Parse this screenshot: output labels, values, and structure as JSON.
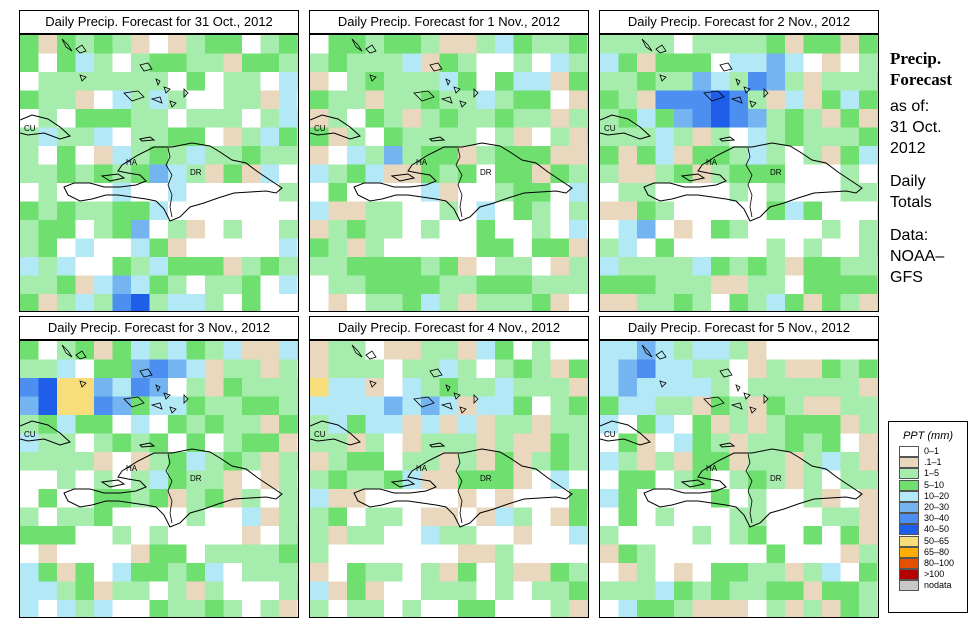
{
  "panels": [
    {
      "title": "Daily Precip. Forecast for  31 Oct., 2012"
    },
    {
      "title": "Daily Precip. Forecast for  1 Nov., 2012"
    },
    {
      "title": "Daily Precip. Forecast for  2 Nov., 2012"
    },
    {
      "title": "Daily Precip. Forecast for  3 Nov., 2012"
    },
    {
      "title": "Daily Precip. Forecast for  4 Nov., 2012"
    },
    {
      "title": "Daily Precip. Forecast for  5 Nov., 2012"
    }
  ],
  "map_labels": {
    "cuba": "CU",
    "haiti": "HA",
    "dominican_republic": "DR"
  },
  "side": {
    "heading1": "Precip.",
    "heading2": "Forecast",
    "as_of": "as of:",
    "date1": "31 Oct.",
    "date2": "2012",
    "totals1": "Daily",
    "totals2": "Totals",
    "data1": "Data:",
    "data2": "NOAA–",
    "data3": "GFS"
  },
  "legend": {
    "title": "PPT (mm)",
    "items": [
      {
        "label": "0–1",
        "color": "#ffffff"
      },
      {
        "label": ".1–1",
        "color": "#e9d8bd"
      },
      {
        "label": "1–5",
        "color": "#a6ecac"
      },
      {
        "label": "5–10",
        "color": "#6fe06f"
      },
      {
        "label": "10–20",
        "color": "#b3e8f7"
      },
      {
        "label": "20–30",
        "color": "#74b4f0"
      },
      {
        "label": "30–40",
        "color": "#4c8ff0"
      },
      {
        "label": "40–50",
        "color": "#1f5ee8"
      },
      {
        "label": "50–65",
        "color": "#f7de7a"
      },
      {
        "label": "65–80",
        "color": "#ffae00"
      },
      {
        "label": "80–100",
        "color": "#e25000"
      },
      {
        "label": ">100",
        "color": "#b40000"
      },
      {
        "label": "nodata",
        "color": "#c8c8c8"
      }
    ]
  }
}
